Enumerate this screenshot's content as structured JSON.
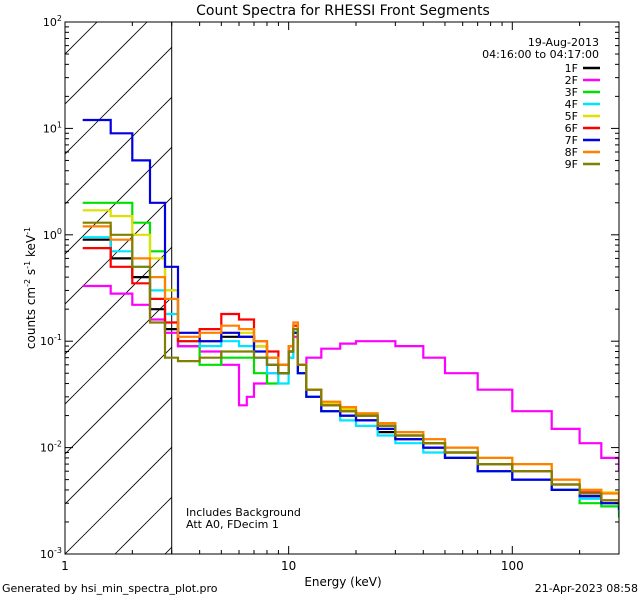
{
  "chart_data": {
    "type": "line",
    "title": "Count Spectra for RHESSI Front Segments",
    "xlabel": "Energy (keV)",
    "ylabel": "counts cm-2 s-1 keV-1",
    "x_scale": "log",
    "y_scale": "log",
    "xlim": [
      1,
      300
    ],
    "ylim": [
      0.001,
      100
    ],
    "x_ticks": [
      {
        "value": 1,
        "label": "1"
      },
      {
        "value": 10,
        "label": "10"
      },
      {
        "value": 100,
        "label": "100"
      }
    ],
    "y_ticks": [
      {
        "value": 0.001,
        "base": "10",
        "exp": "-3"
      },
      {
        "value": 0.01,
        "base": "10",
        "exp": "-2"
      },
      {
        "value": 0.1,
        "base": "10",
        "exp": "-1"
      },
      {
        "value": 1,
        "base": "10",
        "exp": "0"
      },
      {
        "value": 10,
        "base": "10",
        "exp": "1"
      },
      {
        "value": 100,
        "base": "10",
        "exp": "2"
      }
    ],
    "date": "19-Aug-2013",
    "time_range": "04:16:00 to 04:17:00",
    "excluded_region_upper_kev": 3,
    "annotations": [
      "Includes Background",
      "Att A0, FDecim 1"
    ],
    "series": [
      {
        "name": "1F",
        "color": "#000000",
        "x": [
          1.2,
          1.6,
          2.0,
          2.4,
          2.8,
          3.2,
          4,
          5,
          6,
          7,
          8,
          9,
          10,
          10.5,
          11,
          12,
          14,
          17,
          20,
          25,
          30,
          40,
          50,
          70,
          100,
          150,
          200,
          250,
          300
        ],
        "y": [
          0.9,
          0.6,
          0.4,
          0.2,
          0.13,
          0.09,
          0.1,
          0.11,
          0.11,
          0.09,
          0.07,
          0.05,
          0.08,
          0.12,
          0.05,
          0.03,
          0.022,
          0.02,
          0.018,
          0.014,
          0.012,
          0.01,
          0.008,
          0.006,
          0.005,
          0.004,
          0.0035,
          0.003,
          0.0025
        ]
      },
      {
        "name": "2F",
        "color": "#ff00ff",
        "x": [
          1.2,
          1.6,
          2.0,
          2.4,
          2.8,
          3.2,
          4,
          5,
          6,
          6.5,
          7,
          8,
          9,
          10,
          10.5,
          11,
          12,
          14,
          17,
          20,
          25,
          30,
          40,
          50,
          70,
          100,
          150,
          200,
          250,
          300
        ],
        "y": [
          0.33,
          0.28,
          0.22,
          0.16,
          0.12,
          0.09,
          0.08,
          0.06,
          0.025,
          0.03,
          0.04,
          0.05,
          0.06,
          0.09,
          0.11,
          0.06,
          0.07,
          0.085,
          0.095,
          0.1,
          0.1,
          0.09,
          0.07,
          0.05,
          0.035,
          0.022,
          0.015,
          0.011,
          0.008,
          0.006
        ]
      },
      {
        "name": "3F",
        "color": "#00e000",
        "x": [
          1.2,
          1.6,
          2.0,
          2.4,
          2.8,
          3.2,
          4,
          5,
          6,
          7,
          8,
          9,
          10,
          10.5,
          11,
          12,
          14,
          17,
          20,
          25,
          30,
          40,
          50,
          70,
          100,
          150,
          200,
          250,
          300
        ],
        "y": [
          2.0,
          2.0,
          1.3,
          0.7,
          0.3,
          0.1,
          0.06,
          0.07,
          0.07,
          0.05,
          0.04,
          0.05,
          0.07,
          0.12,
          0.05,
          0.03,
          0.025,
          0.022,
          0.02,
          0.016,
          0.013,
          0.011,
          0.009,
          0.007,
          0.006,
          0.004,
          0.003,
          0.0028,
          0.0022
        ]
      },
      {
        "name": "4F",
        "color": "#00e5ff",
        "x": [
          1.2,
          1.6,
          2.0,
          2.4,
          2.8,
          3.2,
          4,
          5,
          6,
          7,
          8,
          9,
          10,
          10.5,
          11,
          12,
          14,
          17,
          20,
          25,
          30,
          40,
          50,
          70,
          100,
          150,
          200,
          250,
          300
        ],
        "y": [
          0.95,
          0.7,
          0.5,
          0.3,
          0.18,
          0.1,
          0.09,
          0.1,
          0.09,
          0.07,
          0.05,
          0.04,
          0.07,
          0.13,
          0.05,
          0.03,
          0.022,
          0.018,
          0.016,
          0.013,
          0.011,
          0.009,
          0.008,
          0.006,
          0.005,
          0.004,
          0.0033,
          0.003,
          0.0025
        ]
      },
      {
        "name": "5F",
        "color": "#e0e000",
        "x": [
          1.2,
          1.6,
          2.0,
          2.4,
          2.8,
          3.2,
          4,
          5,
          6,
          7,
          8,
          9,
          10,
          10.5,
          11,
          12,
          14,
          17,
          20,
          25,
          30,
          40,
          50,
          70,
          100,
          150,
          200,
          250,
          300
        ],
        "y": [
          1.7,
          1.5,
          1.0,
          0.6,
          0.3,
          0.12,
          0.1,
          0.12,
          0.12,
          0.09,
          0.07,
          0.06,
          0.09,
          0.14,
          0.06,
          0.035,
          0.026,
          0.023,
          0.021,
          0.017,
          0.014,
          0.012,
          0.01,
          0.008,
          0.007,
          0.005,
          0.004,
          0.0038,
          0.0032
        ]
      },
      {
        "name": "6F",
        "color": "#ff0000",
        "x": [
          1.2,
          1.6,
          2.0,
          2.4,
          2.8,
          3.2,
          4,
          5,
          6,
          7,
          8,
          9,
          10,
          10.5,
          11,
          12,
          14,
          17,
          20,
          25,
          30,
          40,
          50,
          70,
          100,
          150,
          200,
          250,
          300
        ],
        "y": [
          0.75,
          0.5,
          0.35,
          0.25,
          0.15,
          0.1,
          0.13,
          0.18,
          0.16,
          0.1,
          0.08,
          0.06,
          0.09,
          0.14,
          0.06,
          0.035,
          0.025,
          0.022,
          0.02,
          0.016,
          0.013,
          0.011,
          0.009,
          0.007,
          0.006,
          0.0045,
          0.0038,
          0.0032,
          0.0028
        ]
      },
      {
        "name": "7F",
        "color": "#0000e0",
        "x": [
          1.2,
          1.6,
          2.0,
          2.4,
          2.8,
          3.2,
          4,
          5,
          6,
          7,
          8,
          9,
          10,
          10.5,
          11,
          12,
          14,
          17,
          20,
          25,
          30,
          40,
          50,
          70,
          100,
          150,
          200,
          250,
          300
        ],
        "y": [
          12.0,
          9.0,
          5.0,
          2.0,
          0.5,
          0.12,
          0.1,
          0.12,
          0.11,
          0.08,
          0.06,
          0.05,
          0.08,
          0.12,
          0.05,
          0.03,
          0.022,
          0.02,
          0.018,
          0.015,
          0.012,
          0.01,
          0.008,
          0.006,
          0.005,
          0.004,
          0.0035,
          0.003,
          0.0026
        ]
      },
      {
        "name": "8F",
        "color": "#ff8000",
        "x": [
          1.2,
          1.6,
          2.0,
          2.4,
          2.8,
          3.2,
          4,
          5,
          6,
          7,
          8,
          9,
          10,
          10.5,
          11,
          12,
          14,
          17,
          20,
          25,
          30,
          40,
          50,
          70,
          100,
          150,
          200,
          250,
          300
        ],
        "y": [
          1.2,
          0.9,
          0.6,
          0.4,
          0.25,
          0.11,
          0.12,
          0.14,
          0.13,
          0.1,
          0.07,
          0.06,
          0.09,
          0.15,
          0.06,
          0.035,
          0.027,
          0.024,
          0.021,
          0.017,
          0.014,
          0.012,
          0.01,
          0.008,
          0.007,
          0.005,
          0.004,
          0.0037,
          0.003
        ]
      },
      {
        "name": "9F",
        "color": "#808000",
        "x": [
          1.2,
          1.6,
          2.0,
          2.4,
          2.8,
          3.2,
          4,
          5,
          6,
          7,
          8,
          9,
          10,
          10.5,
          11,
          12,
          14,
          17,
          20,
          25,
          30,
          40,
          50,
          70,
          100,
          150,
          200,
          250,
          300
        ],
        "y": [
          1.3,
          1.0,
          0.5,
          0.15,
          0.07,
          0.065,
          0.07,
          0.08,
          0.08,
          0.07,
          0.06,
          0.05,
          0.08,
          0.13,
          0.06,
          0.035,
          0.025,
          0.022,
          0.02,
          0.016,
          0.013,
          0.011,
          0.009,
          0.007,
          0.006,
          0.0045,
          0.0037,
          0.0032,
          0.0028
        ]
      }
    ]
  },
  "footer": {
    "left": "Generated by hsi_min_spectra_plot.pro",
    "right": "21-Apr-2023 08:58"
  }
}
